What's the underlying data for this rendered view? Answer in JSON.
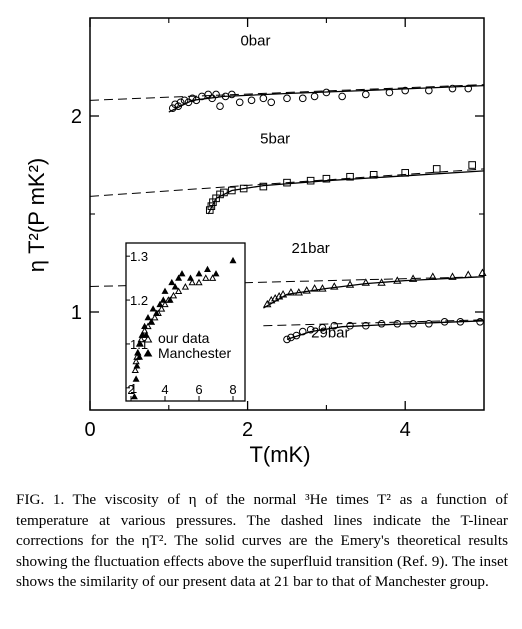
{
  "chart_data": {
    "type": "scatter",
    "xlabel": "T(mK)",
    "ylabel": "η T²(P mK²)",
    "xlim": [
      0,
      5
    ],
    "ylim": [
      0.5,
      2.5
    ],
    "xticks": [
      "0",
      "2",
      "4"
    ],
    "yticks": [
      "1",
      "2"
    ],
    "series": [
      {
        "name": "0bar",
        "marker": "circle",
        "points": [
          [
            1.05,
            2.04
          ],
          [
            1.08,
            2.06
          ],
          [
            1.12,
            2.05
          ],
          [
            1.15,
            2.07
          ],
          [
            1.2,
            2.08
          ],
          [
            1.25,
            2.07
          ],
          [
            1.3,
            2.09
          ],
          [
            1.35,
            2.08
          ],
          [
            1.42,
            2.1
          ],
          [
            1.5,
            2.11
          ],
          [
            1.55,
            2.09
          ],
          [
            1.6,
            2.11
          ],
          [
            1.65,
            2.05
          ],
          [
            1.72,
            2.1
          ],
          [
            1.8,
            2.11
          ],
          [
            1.9,
            2.07
          ],
          [
            2.05,
            2.08
          ],
          [
            2.2,
            2.09
          ],
          [
            2.3,
            2.07
          ],
          [
            2.5,
            2.09
          ],
          [
            2.7,
            2.09
          ],
          [
            2.85,
            2.1
          ],
          [
            3.0,
            2.12
          ],
          [
            3.2,
            2.1
          ],
          [
            3.5,
            2.11
          ],
          [
            3.8,
            2.12
          ],
          [
            4.0,
            2.13
          ],
          [
            4.3,
            2.13
          ],
          [
            4.6,
            2.14
          ],
          [
            4.8,
            2.14
          ]
        ],
        "dashed_line": [
          [
            0,
            2.08
          ],
          [
            5,
            2.16
          ]
        ],
        "solid_curve": [
          [
            1.0,
            2.02
          ],
          [
            1.3,
            2.08
          ],
          [
            1.7,
            2.1
          ],
          [
            2.5,
            2.115
          ],
          [
            3.5,
            2.13
          ],
          [
            5.0,
            2.155
          ]
        ]
      },
      {
        "name": "5bar",
        "marker": "square",
        "points": [
          [
            1.52,
            1.52
          ],
          [
            1.54,
            1.54
          ],
          [
            1.56,
            1.56
          ],
          [
            1.6,
            1.58
          ],
          [
            1.65,
            1.6
          ],
          [
            1.7,
            1.61
          ],
          [
            1.8,
            1.62
          ],
          [
            1.95,
            1.63
          ],
          [
            2.2,
            1.64
          ],
          [
            2.5,
            1.66
          ],
          [
            2.8,
            1.67
          ],
          [
            3.0,
            1.68
          ],
          [
            3.3,
            1.69
          ],
          [
            3.6,
            1.7
          ],
          [
            4.0,
            1.71
          ],
          [
            4.4,
            1.73
          ],
          [
            4.85,
            1.75
          ]
        ],
        "dashed_line": [
          [
            0,
            1.59
          ],
          [
            5,
            1.73
          ]
        ],
        "solid_curve": [
          [
            1.5,
            1.5
          ],
          [
            1.6,
            1.58
          ],
          [
            1.8,
            1.62
          ],
          [
            2.2,
            1.645
          ],
          [
            3.0,
            1.67
          ],
          [
            4.0,
            1.695
          ],
          [
            5.0,
            1.72
          ]
        ]
      },
      {
        "name": "21bar",
        "marker": "triangle",
        "points": [
          [
            2.25,
            1.04
          ],
          [
            2.3,
            1.06
          ],
          [
            2.35,
            1.07
          ],
          [
            2.4,
            1.08
          ],
          [
            2.45,
            1.09
          ],
          [
            2.55,
            1.1
          ],
          [
            2.65,
            1.1
          ],
          [
            2.75,
            1.11
          ],
          [
            2.85,
            1.12
          ],
          [
            2.95,
            1.12
          ],
          [
            3.1,
            1.13
          ],
          [
            3.3,
            1.14
          ],
          [
            3.5,
            1.15
          ],
          [
            3.7,
            1.15
          ],
          [
            3.9,
            1.16
          ],
          [
            4.1,
            1.17
          ],
          [
            4.35,
            1.18
          ],
          [
            4.6,
            1.18
          ],
          [
            4.8,
            1.19
          ],
          [
            4.98,
            1.2
          ]
        ],
        "dashed_line": [
          [
            0,
            1.13
          ],
          [
            5,
            1.18
          ]
        ],
        "solid_curve": [
          [
            2.2,
            1.02
          ],
          [
            2.5,
            1.09
          ],
          [
            3.0,
            1.12
          ],
          [
            3.5,
            1.145
          ],
          [
            4.0,
            1.16
          ],
          [
            5.0,
            1.18
          ]
        ]
      },
      {
        "name": "29bar",
        "marker": "circle",
        "points": [
          [
            2.5,
            0.86
          ],
          [
            2.55,
            0.87
          ],
          [
            2.62,
            0.88
          ],
          [
            2.7,
            0.9
          ],
          [
            2.8,
            0.91
          ],
          [
            2.95,
            0.92
          ],
          [
            3.1,
            0.93
          ],
          [
            3.3,
            0.93
          ],
          [
            3.5,
            0.93
          ],
          [
            3.7,
            0.94
          ],
          [
            3.9,
            0.94
          ],
          [
            4.1,
            0.94
          ],
          [
            4.3,
            0.94
          ],
          [
            4.5,
            0.95
          ],
          [
            4.7,
            0.95
          ],
          [
            4.95,
            0.95
          ]
        ],
        "dashed_line": [
          [
            2.2,
            0.93
          ],
          [
            5,
            0.96
          ]
        ],
        "solid_curve": [
          [
            2.5,
            0.86
          ],
          [
            2.8,
            0.9
          ],
          [
            3.2,
            0.925
          ],
          [
            4.0,
            0.94
          ],
          [
            5.0,
            0.955
          ]
        ]
      }
    ],
    "inset": {
      "xlim": [
        2,
        9
      ],
      "ylim": [
        0.97,
        1.33
      ],
      "xticks": [
        "2",
        "4",
        "6",
        "8"
      ],
      "yticks": [
        "1",
        "1.1",
        "1.2",
        "1.3"
      ],
      "legend": [
        "our data",
        "Manchester"
      ],
      "series": [
        {
          "name": "our data",
          "marker": "open-triangle",
          "points": [
            [
              2.25,
              1.04
            ],
            [
              2.3,
              1.06
            ],
            [
              2.35,
              1.07
            ],
            [
              2.4,
              1.08
            ],
            [
              2.5,
              1.1
            ],
            [
              2.6,
              1.11
            ],
            [
              2.7,
              1.12
            ],
            [
              2.8,
              1.13
            ],
            [
              3.0,
              1.14
            ],
            [
              3.2,
              1.15
            ],
            [
              3.4,
              1.16
            ],
            [
              3.6,
              1.17
            ],
            [
              3.8,
              1.18
            ],
            [
              4.0,
              1.19
            ],
            [
              4.2,
              1.2
            ],
            [
              4.5,
              1.21
            ],
            [
              4.8,
              1.22
            ],
            [
              5.2,
              1.23
            ],
            [
              5.6,
              1.24
            ],
            [
              6.0,
              1.24
            ],
            [
              6.4,
              1.25
            ],
            [
              6.8,
              1.25
            ]
          ]
        },
        {
          "name": "Manchester",
          "marker": "filled-triangle",
          "points": [
            [
              2.2,
              0.98
            ],
            [
              2.3,
              1.02
            ],
            [
              2.35,
              1.05
            ],
            [
              2.4,
              1.08
            ],
            [
              2.5,
              1.07
            ],
            [
              2.55,
              1.1
            ],
            [
              2.65,
              1.12
            ],
            [
              2.8,
              1.14
            ],
            [
              2.9,
              1.12
            ],
            [
              3.0,
              1.16
            ],
            [
              3.2,
              1.15
            ],
            [
              3.3,
              1.18
            ],
            [
              3.5,
              1.17
            ],
            [
              3.7,
              1.19
            ],
            [
              3.9,
              1.2
            ],
            [
              4.0,
              1.22
            ],
            [
              4.3,
              1.2
            ],
            [
              4.4,
              1.24
            ],
            [
              4.6,
              1.23
            ],
            [
              4.8,
              1.25
            ],
            [
              5.0,
              1.26
            ],
            [
              5.5,
              1.25
            ],
            [
              6.0,
              1.26
            ],
            [
              6.5,
              1.27
            ],
            [
              7.0,
              1.26
            ],
            [
              8.0,
              1.29
            ]
          ]
        }
      ]
    }
  },
  "caption": {
    "text": "FIG. 1. The viscosity of η of the normal ³He times T² as a function of temperature at various pressures. The dashed lines indicate the T-linear corrections for the ηT². The solid curves are the Emery's theoretical results showing the fluctuation effects above the superfluid transition (Ref. 9). The inset shows the similarity of our present data at 21 bar to that of Manchester group."
  }
}
